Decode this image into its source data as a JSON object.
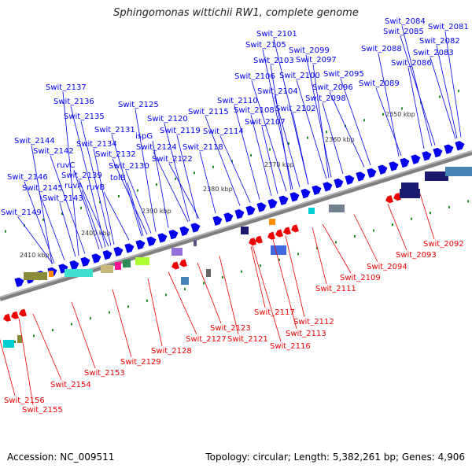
{
  "title": "Sphingomonas wittichii RW1, complete genome",
  "footer": {
    "accession": "Accession: NC_009511",
    "summary": "Topology: circular; Length: 5,382,261 bp; Genes: 4,906"
  },
  "colors": {
    "forward": "#0000ee",
    "reverse": "#ee0000",
    "backbone": "#808080",
    "tick": "#228b22"
  },
  "kbp_labels": [
    "2350 kbp",
    "2360 kbp",
    "2370 kbp",
    "2380 kbp",
    "2390 kbp",
    "2400 kbp",
    "2410 kbp"
  ],
  "forward_labels": [
    "Swit_2081",
    "Swit_2082",
    "Swit_2083",
    "Swit_2084",
    "Swit_2085",
    "Swit_2086",
    "Swit_2088",
    "Swit_2089",
    "Swit_2095",
    "Swit_2096",
    "Swit_2097",
    "Swit_2098",
    "Swit_2099",
    "Swit_2100",
    "Swit_2101",
    "Swit_2102",
    "Swit_2103",
    "Swit_2104",
    "Swit_2105",
    "Swit_2106",
    "Swit_2107",
    "Swit_2108",
    "Swit_2110",
    "Swit_2114",
    "Swit_2115",
    "Swit_2118",
    "Swit_2119",
    "Swit_2120",
    "Swit_2122",
    "Swit_2124",
    "ispG",
    "Swit_2125",
    "Swit_2130",
    "Swit_2131",
    "Swit_2132",
    "tolB",
    "Swit_2134",
    "ruvB",
    "Swit_2135",
    "Swit_2136",
    "Swit_2137",
    "ruvA",
    "ruvC",
    "Swit_2139",
    "Swit_2142",
    "Swit_2143",
    "Swit_2144",
    "Swit_2145",
    "Swit_2146",
    "Swit_2149"
  ],
  "reverse_labels": [
    "Swit_2092",
    "Swit_2093",
    "Swit_2094",
    "Swit_2109",
    "Swit_2111",
    "Swit_2112",
    "Swit_2113",
    "Swit_2116",
    "Swit_2117",
    "Swit_2121",
    "Swit_2123",
    "Swit_2127",
    "Swit_2128",
    "Swit_2129",
    "Swit_2153",
    "Swit_2154",
    "Swit_2155",
    "Swit_2156"
  ]
}
